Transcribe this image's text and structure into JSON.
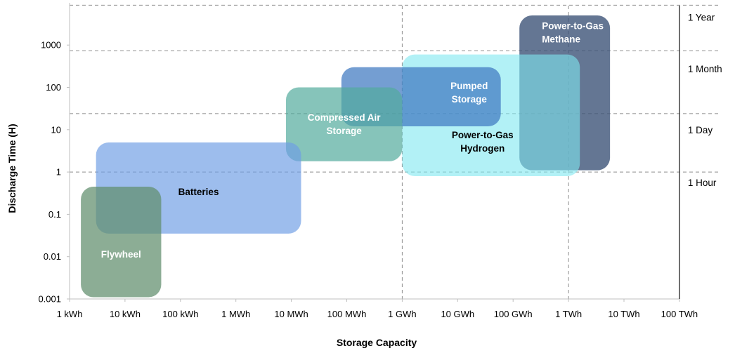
{
  "chart_data": {
    "type": "area",
    "xlabel": "Storage Capacity",
    "ylabel": "Discharge Time (H)",
    "x_ticks": [
      "1 kWh",
      "10 kWh",
      "100 kWh",
      "1 MWh",
      "10 MWh",
      "100 MWh",
      "1 GWh",
      "10 GWh",
      "100 GWh",
      "1 TWh",
      "10 TWh",
      "100 TWh"
    ],
    "y_ticks": [
      "0.001",
      "0.01",
      "0.1",
      "1",
      "10",
      "100",
      "1000"
    ],
    "x_scale": "log",
    "y_scale": "log",
    "xlim_kwh": [
      1,
      100000000000
    ],
    "ylim_h": [
      0.001,
      10000
    ],
    "grid": "dashed lines at 1 GWh, 1 TWh, 1 Hour, 1 Day, 1 Month, 1 Year",
    "x_reference_lines_kwh": [
      1000000,
      1000000000
    ],
    "durations": [
      {
        "label": "1 Year",
        "hours": 8760
      },
      {
        "label": "1 Month",
        "hours": 730
      },
      {
        "label": "1 Day",
        "hours": 24
      },
      {
        "label": "1 Hour",
        "hours": 1
      }
    ],
    "series": [
      {
        "name": "Power-to-Gas Methane",
        "lines": [
          "Power-to-Gas",
          "Methane"
        ],
        "color": "#3d5478",
        "opacity": 0.8,
        "text_color": "#ffffff",
        "x_kwh": [
          130000000,
          5600000000
        ],
        "y_h": [
          1.1,
          5000
        ]
      },
      {
        "name": "Power-to-Gas Hydrogen",
        "lines": [
          "Power-to-Gas",
          "Hydrogen"
        ],
        "color": "#7fe8f0",
        "opacity": 0.6,
        "text_color": "#000000",
        "x_kwh": [
          1000000,
          1600000000
        ],
        "y_h": [
          0.8,
          600
        ]
      },
      {
        "name": "Pumped Storage",
        "lines": [
          "Pumped",
          "Storage"
        ],
        "color": "#3f78c0",
        "opacity": 0.72,
        "text_color": "#ffffff",
        "x_kwh": [
          80000,
          60000000
        ],
        "y_h": [
          12,
          300
        ]
      },
      {
        "name": "Compressed Air Storage",
        "lines": [
          "Compressed Air",
          "Storage"
        ],
        "color": "#52ab9c",
        "opacity": 0.7,
        "text_color": "#ffffff",
        "x_kwh": [
          8000,
          1000000
        ],
        "y_h": [
          1.8,
          100
        ]
      },
      {
        "name": "Batteries",
        "lines": [
          "Batteries"
        ],
        "color": "#6f9ee4",
        "opacity": 0.68,
        "text_color": "#000000",
        "x_kwh": [
          3,
          15000
        ],
        "y_h": [
          0.035,
          5
        ]
      },
      {
        "name": "Flywheel",
        "lines": [
          "Flywheel"
        ],
        "color": "#5f8e6c",
        "opacity": 0.72,
        "text_color": "#ffffff",
        "x_kwh": [
          1.6,
          45
        ],
        "y_h": [
          0.0011,
          0.45
        ]
      }
    ]
  }
}
